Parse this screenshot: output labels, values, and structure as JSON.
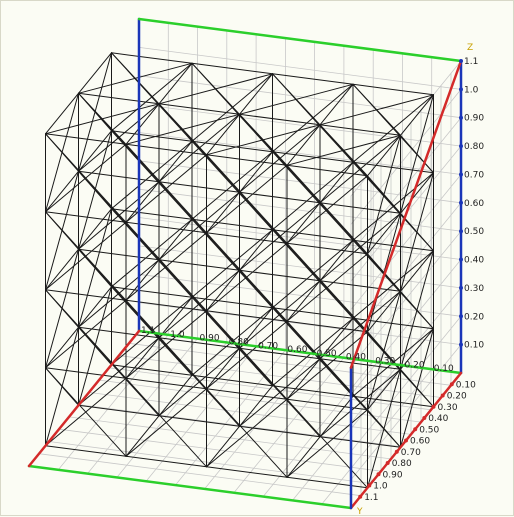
{
  "scene": {
    "background": "#fbfcf4",
    "colors": {
      "frame": "#1a1a1a",
      "grid": "#c8c8c8",
      "axis_x": "#2bcf2b",
      "axis_y": "#d42a2a",
      "axis_z": "#1a35b8",
      "label": "#222222",
      "axis_title": "#c8a000"
    }
  },
  "axes": {
    "z_title": "Z",
    "y_title": "Y",
    "z_ticks": [
      "1.1",
      "1.0",
      "0.90",
      "0.80",
      "0.70",
      "0.60",
      "0.50",
      "0.40",
      "0.30",
      "0.20",
      "0.10"
    ],
    "back_x_ticks": [
      "1.1",
      "1.0",
      "0.90",
      "0.80",
      "0.70",
      "0.60",
      "0.50",
      "0.40",
      "0.30",
      "0.20",
      "0.10"
    ],
    "y_ticks": [
      "0.10",
      "0.20",
      "0.30",
      "0.40",
      "0.50",
      "0.60",
      "0.70",
      "0.80",
      "0.90",
      "1.0",
      "1.1"
    ]
  }
}
